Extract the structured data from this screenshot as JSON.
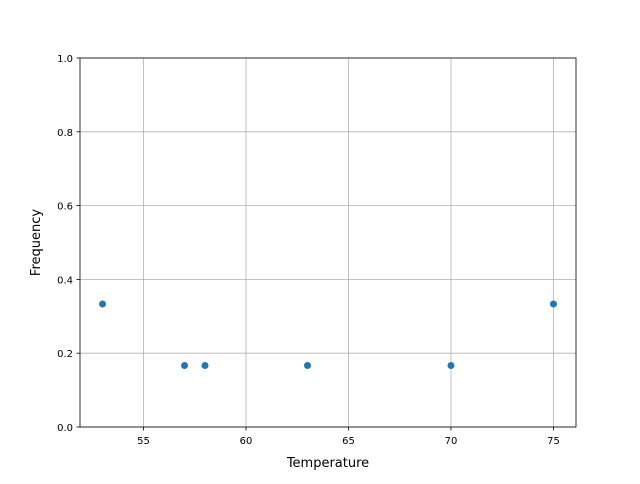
{
  "chart_data": {
    "type": "scatter",
    "title": "",
    "xlabel": "Temperature",
    "ylabel": "Frequency",
    "xlim": [
      51.9,
      76.1
    ],
    "ylim": [
      0,
      1.0
    ],
    "grid": true,
    "x_ticks": [
      55,
      60,
      65,
      70,
      75
    ],
    "x_tick_labels": [
      "55",
      "60",
      "65",
      "70",
      "75"
    ],
    "y_ticks": [
      0.0,
      0.2,
      0.4,
      0.6,
      0.8,
      1.0
    ],
    "y_tick_labels": [
      "0.0",
      "0.2",
      "0.4",
      "0.6",
      "0.8",
      "1.0"
    ],
    "x": [
      53,
      57,
      58,
      63,
      70,
      75
    ],
    "y": [
      0.3333,
      0.1667,
      0.1667,
      0.1667,
      0.1667,
      0.3333
    ],
    "color": "#1f77b4"
  }
}
